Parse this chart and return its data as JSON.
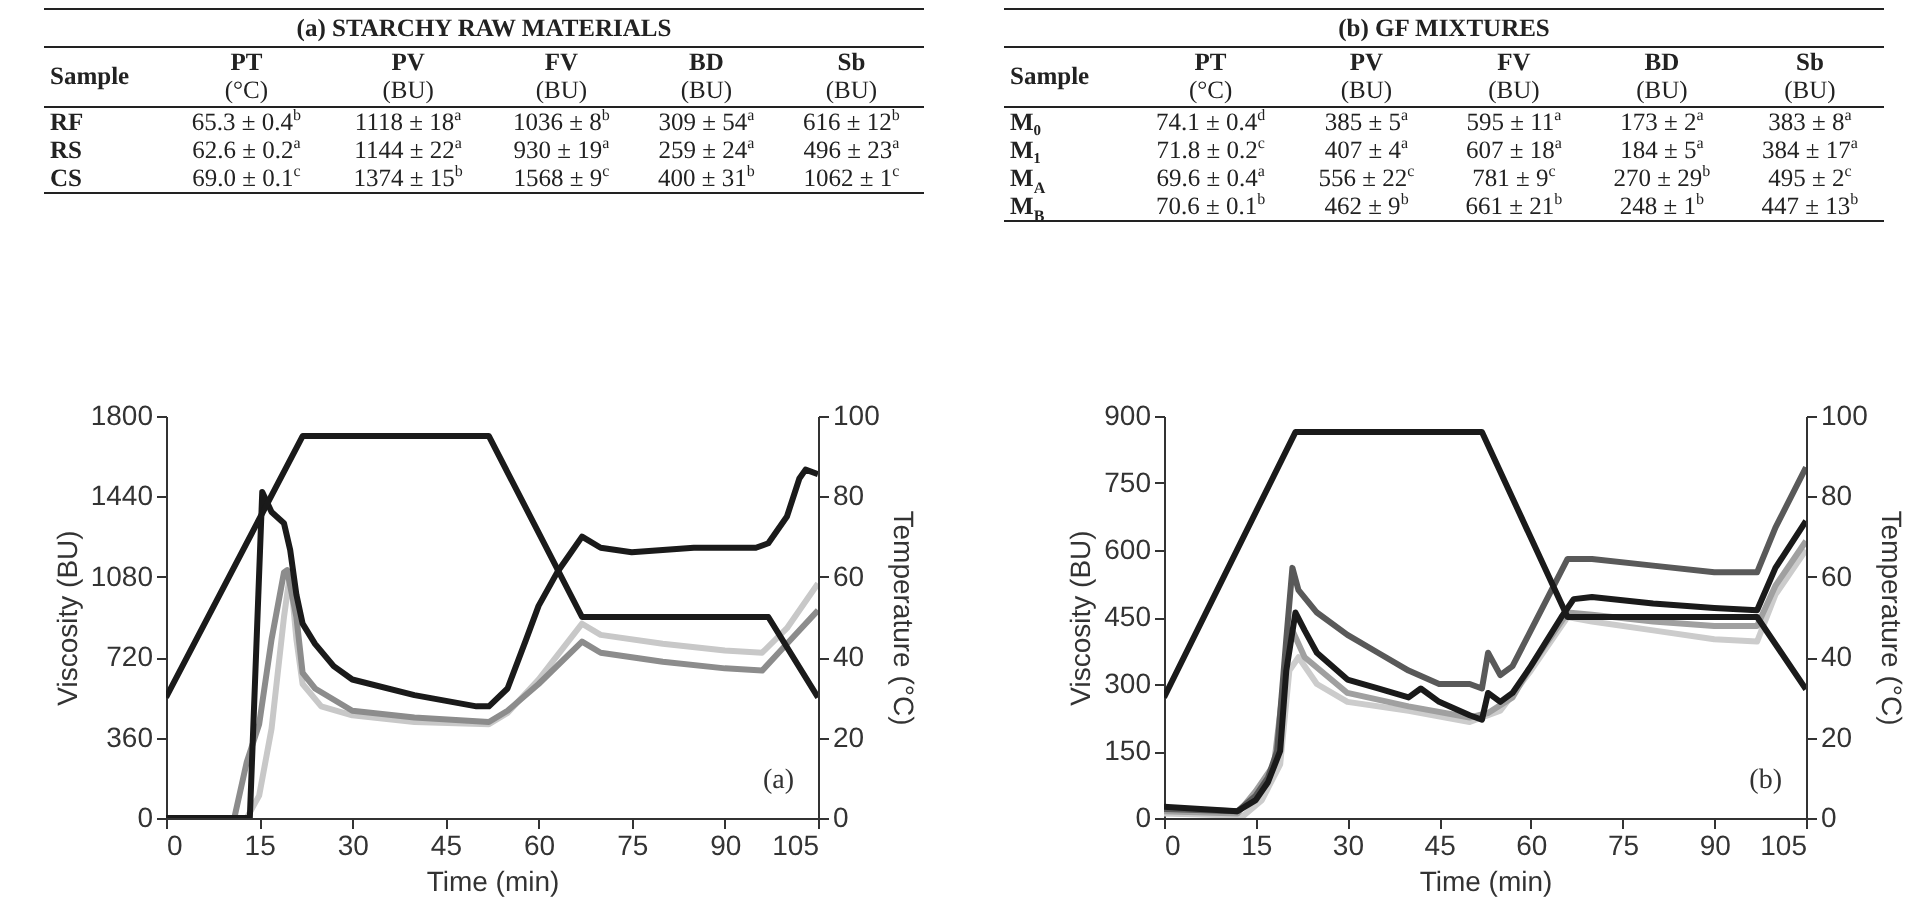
{
  "chart_data": [
    {
      "type": "other",
      "title": "(a) STARCHY RAW MATERIALS",
      "categories": [
        "Sample",
        "PT\n(°C)",
        "PV\n(BU)",
        "FV\n(BU)",
        "BD\n(BU)",
        "Sb\n(BU)"
      ],
      "annotations": [
        "RF",
        "65.3 ± 0.4$^{b}$",
        "1118 ± 18$^{a}$",
        "1036 ± 8$^{b}$",
        "309 ± 54$^{a}$",
        "616 ± 12$^{b}$",
        "RS",
        "62.6 ± 0.2$^{a}$",
        "1144 ± 22$^{a}$",
        "930 ± 19$^{a}$",
        "259 ± 24$^{a}$",
        "496 ± 23$^{a}$",
        "CS",
        "69.0 ± 0.1$^{c}$",
        "1374 ± 15$^{b}$",
        "1568 ± 9$^{c}$",
        "400 ± 31$^{b}$",
        "1062 ± 1$^{c}$"
      ]
    },
    {
      "type": "other",
      "title": "(b) GF MIXTURES",
      "categories": [
        "Sample",
        "PT\n(°C)",
        "PV\n(BU)",
        "FV\n(BU)",
        "BD\n(BU)",
        "Sb\n(BU)"
      ],
      "annotations": [
        "M₀",
        "74.1 ± 0.4$^{d}$",
        "385 ± 5$^{a}$",
        "595 ± 11$^{a}$",
        "173 ± 2$^{a}$",
        "383 ± 8$^{a}$",
        "M₁",
        "71.8 ± 0.2$^{c}$",
        "407 ± 4$^{a}$",
        "607 ± 18$^{a}$",
        "184 ± 5$^{a}$",
        "384 ± 17$^{a}$",
        "M$_{A}$",
        "69.6 ± 0.4$^{a}$",
        "556 ± 22$^{c}$",
        "781 ± 9$^{c}$",
        "270 ± 29$^{b}$",
        "495 ± 2$^{c}$",
        "M$_{B}$",
        "70.6 ± 0.1$^{b}$",
        "462 ± 9$^{b}$",
        "661 ± 21$^{b}$",
        "248 ± 1$^{b}$",
        "447 ± 13$^{b}$"
      ]
    },
    {
      "type": "line",
      "xlabel": "Time (min)",
      "ylabel": "Viscosity (BU)",
      "y2label": "Temperature (°C)",
      "xlim": [
        0,
        105
      ],
      "xticks": [
        0,
        15,
        30,
        45,
        60,
        75,
        90,
        105
      ],
      "ylim": [
        0,
        1800
      ],
      "yticks": [
        0,
        360,
        720,
        1080,
        1440,
        1800
      ],
      "y2lim": [
        0,
        100
      ],
      "y2ticks": [
        0,
        20,
        40,
        60,
        80,
        100
      ],
      "annotations": [
        "(a)"
      ],
      "series": [
        {
          "color": "#c8c8c8",
          "x": [
            0,
            13,
            15,
            17,
            19,
            20,
            21,
            22,
            25,
            30,
            40,
            52,
            55,
            60,
            67,
            70,
            80,
            90,
            96,
            100,
            105
          ],
          "values": [
            0,
            0,
            100,
            400,
            900,
            1100,
            800,
            600,
            500,
            460,
            430,
            420,
            470,
            620,
            870,
            820,
            780,
            750,
            740,
            850,
            1050
          ]
        },
        {
          "color": "#8c8c8c",
          "x": [
            0,
            11,
            13,
            15,
            17,
            19,
            19.5,
            21,
            22,
            24,
            30,
            40,
            52,
            55,
            60,
            67,
            70,
            80,
            90,
            96,
            100,
            105
          ],
          "values": [
            0,
            0,
            250,
            420,
            800,
            1100,
            1110,
            900,
            650,
            580,
            480,
            450,
            430,
            480,
            600,
            790,
            740,
            700,
            670,
            660,
            780,
            930
          ]
        },
        {
          "color": "#1a1a1a",
          "x": [
            0,
            13.5,
            15.5,
            17,
            19,
            20,
            21,
            22,
            24,
            27,
            30,
            40,
            50,
            52,
            55,
            58,
            60,
            63,
            65,
            67,
            70,
            75,
            80,
            85,
            90,
            95,
            97,
            100,
            102,
            103,
            105
          ],
          "values": [
            0,
            0,
            1460,
            1370,
            1320,
            1200,
            1000,
            870,
            780,
            680,
            620,
            550,
            500,
            500,
            580,
            800,
            950,
            1100,
            1180,
            1260,
            1210,
            1190,
            1200,
            1210,
            1210,
            1210,
            1230,
            1350,
            1520,
            1560,
            1540
          ]
        },
        {
          "color": "#1a1a1a",
          "axis": "y2",
          "x": [
            0,
            22,
            52,
            67,
            97,
            105
          ],
          "values": [
            30,
            95,
            95,
            50,
            50,
            30
          ]
        }
      ]
    },
    {
      "type": "line",
      "xlabel": "Time (min)",
      "ylabel": "Viscosity (BU)",
      "y2label": "Temperature (°C)",
      "xlim": [
        0,
        105
      ],
      "xticks": [
        0,
        15,
        30,
        45,
        60,
        75,
        90,
        105
      ],
      "ylim": [
        0,
        900
      ],
      "yticks": [
        0,
        150,
        300,
        450,
        600,
        750,
        900
      ],
      "y2lim": [
        0,
        100
      ],
      "y2ticks": [
        0,
        20,
        40,
        60,
        80,
        100
      ],
      "annotations": [
        "(b)"
      ],
      "series": [
        {
          "color": "#cccccc",
          "x": [
            0,
            13,
            16,
            19,
            20.5,
            22,
            25,
            30,
            40,
            50,
            55,
            60,
            66,
            70,
            80,
            90,
            97,
            100,
            105
          ],
          "values": [
            10,
            5,
            40,
            120,
            330,
            360,
            300,
            260,
            240,
            215,
            240,
            330,
            450,
            440,
            420,
            400,
            395,
            500,
            600
          ]
        },
        {
          "color": "#a0a0a0",
          "x": [
            0,
            12,
            15,
            18,
            20,
            21,
            23,
            30,
            40,
            50,
            53,
            57,
            60,
            66,
            70,
            80,
            90,
            97,
            100,
            105
          ],
          "values": [
            15,
            10,
            60,
            120,
            350,
            420,
            360,
            280,
            250,
            225,
            235,
            270,
            340,
            460,
            455,
            440,
            430,
            430,
            520,
            620
          ]
        },
        {
          "color": "#595959",
          "x": [
            0,
            12,
            15,
            17,
            18.5,
            20,
            21,
            22,
            25,
            30,
            35,
            40,
            45,
            50,
            52,
            53,
            55,
            57,
            60,
            63,
            66,
            70,
            80,
            90,
            97,
            100,
            105
          ],
          "values": [
            20,
            15,
            50,
            90,
            150,
            400,
            560,
            510,
            460,
            410,
            370,
            330,
            300,
            300,
            290,
            370,
            320,
            340,
            420,
            500,
            580,
            580,
            565,
            550,
            550,
            650,
            785
          ]
        },
        {
          "color": "#1a1a1a",
          "x": [
            0,
            12,
            15,
            17,
            19,
            20,
            21.5,
            23,
            25,
            30,
            35,
            40,
            42,
            45,
            50,
            52,
            53,
            55,
            57,
            60,
            65,
            67,
            70,
            80,
            90,
            97,
            100,
            105
          ],
          "values": [
            25,
            15,
            40,
            80,
            150,
            330,
            460,
            420,
            370,
            310,
            290,
            270,
            290,
            260,
            230,
            220,
            280,
            260,
            280,
            340,
            450,
            490,
            495,
            480,
            470,
            465,
            560,
            665
          ]
        },
        {
          "color": "#1a1a1a",
          "axis": "y2",
          "x": [
            0,
            21.5,
            52,
            66,
            97,
            105
          ],
          "values": [
            30,
            96,
            96,
            50,
            50,
            32
          ]
        }
      ]
    }
  ]
}
